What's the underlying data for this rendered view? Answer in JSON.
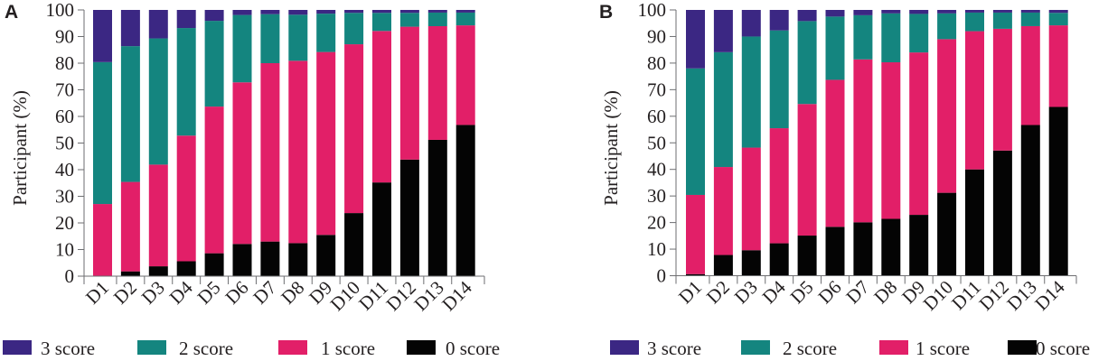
{
  "colors": {
    "score3": "#3b2783",
    "score2": "#14857f",
    "score1": "#e21f68",
    "score0": "#040404"
  },
  "chart_data": [
    {
      "panel": "A",
      "type": "bar",
      "stacked": true,
      "title": "",
      "xlabel": "",
      "ylabel": "Participant (%)",
      "ylim": [
        0,
        100
      ],
      "yticks": [
        "0",
        "10",
        "20",
        "30",
        "40",
        "50",
        "60",
        "70",
        "80",
        "90",
        "100"
      ],
      "categories": [
        "D1",
        "D2",
        "D3",
        "D4",
        "D5",
        "D6",
        "D7",
        "D8",
        "D9",
        "D10",
        "D11",
        "D12",
        "D13",
        "D14"
      ],
      "series": [
        {
          "name": "0 score",
          "key": "score0",
          "values": [
            0,
            1.8,
            3.7,
            5.6,
            8.6,
            12.1,
            13.0,
            12.4,
            15.5,
            23.7,
            35.2,
            43.8,
            51.2,
            56.8
          ]
        },
        {
          "name": "1 score",
          "key": "score1",
          "values": [
            27.1,
            33.6,
            38.2,
            47.2,
            55.1,
            60.7,
            67.0,
            68.5,
            68.7,
            63.4,
            56.9,
            49.9,
            42.7,
            37.4
          ]
        },
        {
          "name": "2 score",
          "key": "score2",
          "values": [
            53.3,
            51.0,
            47.4,
            40.4,
            32.2,
            25.3,
            18.4,
            17.3,
            14.4,
            11.8,
            6.8,
            5.2,
            5.1,
            4.8
          ]
        },
        {
          "name": "3 score",
          "key": "score3",
          "values": [
            19.6,
            13.6,
            10.7,
            6.8,
            4.1,
            1.9,
            1.6,
            1.8,
            1.4,
            1.1,
            1.1,
            1.1,
            1.0,
            1.0
          ]
        }
      ],
      "legend": [
        "3 score",
        "2 score",
        "1 score",
        "0 score"
      ],
      "legend_position": "bottom",
      "grid": false
    },
    {
      "panel": "B",
      "type": "bar",
      "stacked": true,
      "title": "",
      "xlabel": "",
      "ylabel": "Participant (%)",
      "ylim": [
        0,
        100
      ],
      "yticks": [
        "0",
        "10",
        "20",
        "30",
        "40",
        "50",
        "60",
        "70",
        "80",
        "90",
        "100"
      ],
      "categories": [
        "D1",
        "D2",
        "D3",
        "D4",
        "D5",
        "D6",
        "D7",
        "D8",
        "D9",
        "D10",
        "D11",
        "D12",
        "D13",
        "D14"
      ],
      "series": [
        {
          "name": "0 score",
          "key": "score0",
          "values": [
            0.6,
            7.8,
            9.6,
            12.2,
            15.1,
            18.4,
            20.1,
            21.4,
            22.9,
            31.2,
            40.0,
            47.1,
            56.7,
            63.5
          ]
        },
        {
          "name": "1 score",
          "key": "score1",
          "values": [
            29.8,
            33.1,
            38.6,
            43.3,
            49.5,
            55.3,
            61.3,
            58.9,
            61.1,
            57.8,
            52.0,
            45.8,
            37.2,
            30.7
          ]
        },
        {
          "name": "2 score",
          "key": "score2",
          "values": [
            47.6,
            43.2,
            41.8,
            36.8,
            31.2,
            23.8,
            16.6,
            18.4,
            14.5,
            9.7,
            7.0,
            6.1,
            5.1,
            4.7
          ]
        },
        {
          "name": "3 score",
          "key": "score3",
          "values": [
            22.0,
            15.9,
            10.0,
            7.7,
            4.2,
            2.5,
            2.0,
            1.3,
            1.5,
            1.3,
            1.0,
            1.0,
            1.0,
            1.1
          ]
        }
      ],
      "legend": [
        "3 score",
        "2 score",
        "1 score",
        "0 score"
      ],
      "legend_position": "bottom",
      "grid": false
    }
  ]
}
